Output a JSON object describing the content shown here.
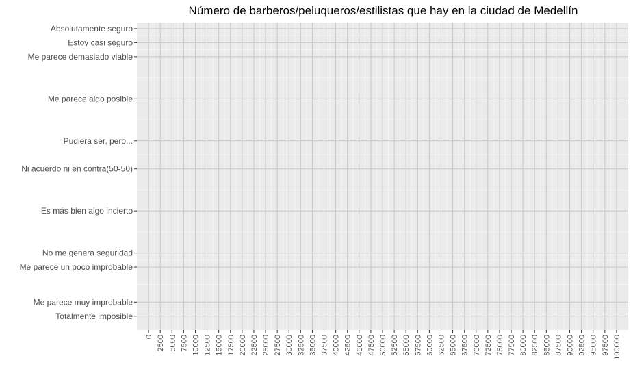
{
  "chart_data": {
    "type": "scatter",
    "title": "Número de barberos/peluqueros/estilistas que hay en la ciudad de Medellín",
    "xlabel": "",
    "ylabel": "",
    "xlim": [
      -2500,
      102500
    ],
    "x_ticks": [
      0,
      2500,
      5000,
      7500,
      10000,
      12500,
      15000,
      17500,
      20000,
      22500,
      25000,
      27500,
      30000,
      32500,
      35000,
      37500,
      40000,
      42500,
      45000,
      47500,
      50000,
      52500,
      55000,
      57500,
      60000,
      62500,
      65000,
      67500,
      70000,
      72500,
      75000,
      77500,
      80000,
      82500,
      85000,
      87500,
      90000,
      92500,
      95000,
      97500,
      100000
    ],
    "ylim": [
      0,
      100
    ],
    "y_ticks": [
      {
        "label": "Totalmente imposible",
        "value": 2
      },
      {
        "label": "Me parece muy improbable",
        "value": 6
      },
      {
        "label": "Me parece un poco improbable",
        "value": 16
      },
      {
        "label": "No me genera seguridad",
        "value": 20
      },
      {
        "label": "Es más bien algo incierto",
        "value": 32
      },
      {
        "label": "Ni acuerdo ni en contra(50-50)",
        "value": 44
      },
      {
        "label": "Pudiera ser, pero...",
        "value": 52
      },
      {
        "label": "Me parece algo posible",
        "value": 64
      },
      {
        "label": "Me parece demasiado viable",
        "value": 76
      },
      {
        "label": "Estoy casi seguro",
        "value": 80
      },
      {
        "label": "Absolutamente seguro",
        "value": 84
      }
    ],
    "series": [],
    "grid": true,
    "legend": "none",
    "colors": {
      "panel_bg": "#ebebeb",
      "grid_major": "#c8c8c8",
      "grid_minor": "#f5f5f5",
      "tick_text": "#4d4d4d"
    }
  }
}
